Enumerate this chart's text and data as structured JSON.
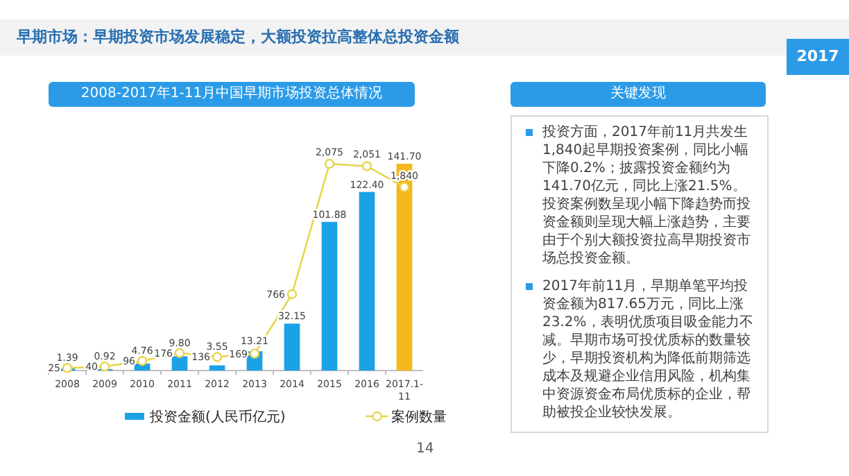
{
  "chart_data": [
    {
      "type": "bar",
      "title": "2008-2017年1-11月中国早期市场投资总体情况",
      "annotations": [
        "早期市场：早期投资市场发展稳定，大额投资拉高整体总投资金额"
      ],
      "categories": [
        "2008",
        "2009",
        "2010",
        "2011",
        "2012",
        "2013",
        "2014",
        "2015",
        "2016",
        "2017.1-11"
      ],
      "series": [
        {
          "name": "投资金额(人民币亿元)",
          "type": "bar",
          "color": "#1ba1e6",
          "colors": [
            "#1ba1e6",
            "#1ba1e6",
            "#1ba1e6",
            "#1ba1e6",
            "#1ba1e6",
            "#1ba1e6",
            "#1ba1e6",
            "#1ba1e6",
            "#1ba1e6",
            "#f5b81c"
          ],
          "values": [
            1.39,
            0.92,
            4.76,
            9.8,
            3.55,
            13.21,
            32.15,
            101.88,
            122.4,
            141.7
          ],
          "value_labels": [
            "1.39",
            "0.92",
            "4.76",
            "9.80",
            "3.55",
            "13.21",
            "32.15",
            "101.88",
            "122.40",
            "141.70"
          ]
        },
        {
          "name": "案例数量",
          "type": "line",
          "axis": "y2",
          "color": "#e8d44d",
          "marker": "circle",
          "values": [
            25,
            40,
            96,
            176,
            136,
            169,
            766,
            2075,
            2051,
            1840
          ],
          "value_labels": [
            "25",
            "40",
            "96",
            "176",
            "136",
            "169",
            "766",
            "2,075",
            "2,051",
            "1,840"
          ]
        }
      ],
      "data_labels": true,
      "legend": "bottom"
    },
    {
      "type": "other",
      "title": "关键发现",
      "annotations": [
        "投资方面，2017年前11月共发生1,840起早期投资案例，同比小幅下降0.2%；披露投资金额约为141.70亿元，同比上涨21.5%。投资案例数呈现小幅下降趋势而投资金额则呈现大幅上涨趋势，主要由于个别大额投资拉高早期投资市场总投资金额。",
        "2017年前11月，早期单笔平均投资金额为817.65万元，同比上涨23.2%，表明优质项目吸金能力不减。早期市场可投优质标的数量较少，早期投资机构为降低前期筛选成本及规避企业信用风险，机构集中资源资金布局优质标的企业，帮助被投企业较快发展。",
        "2017",
        "14"
      ]
    }
  ]
}
